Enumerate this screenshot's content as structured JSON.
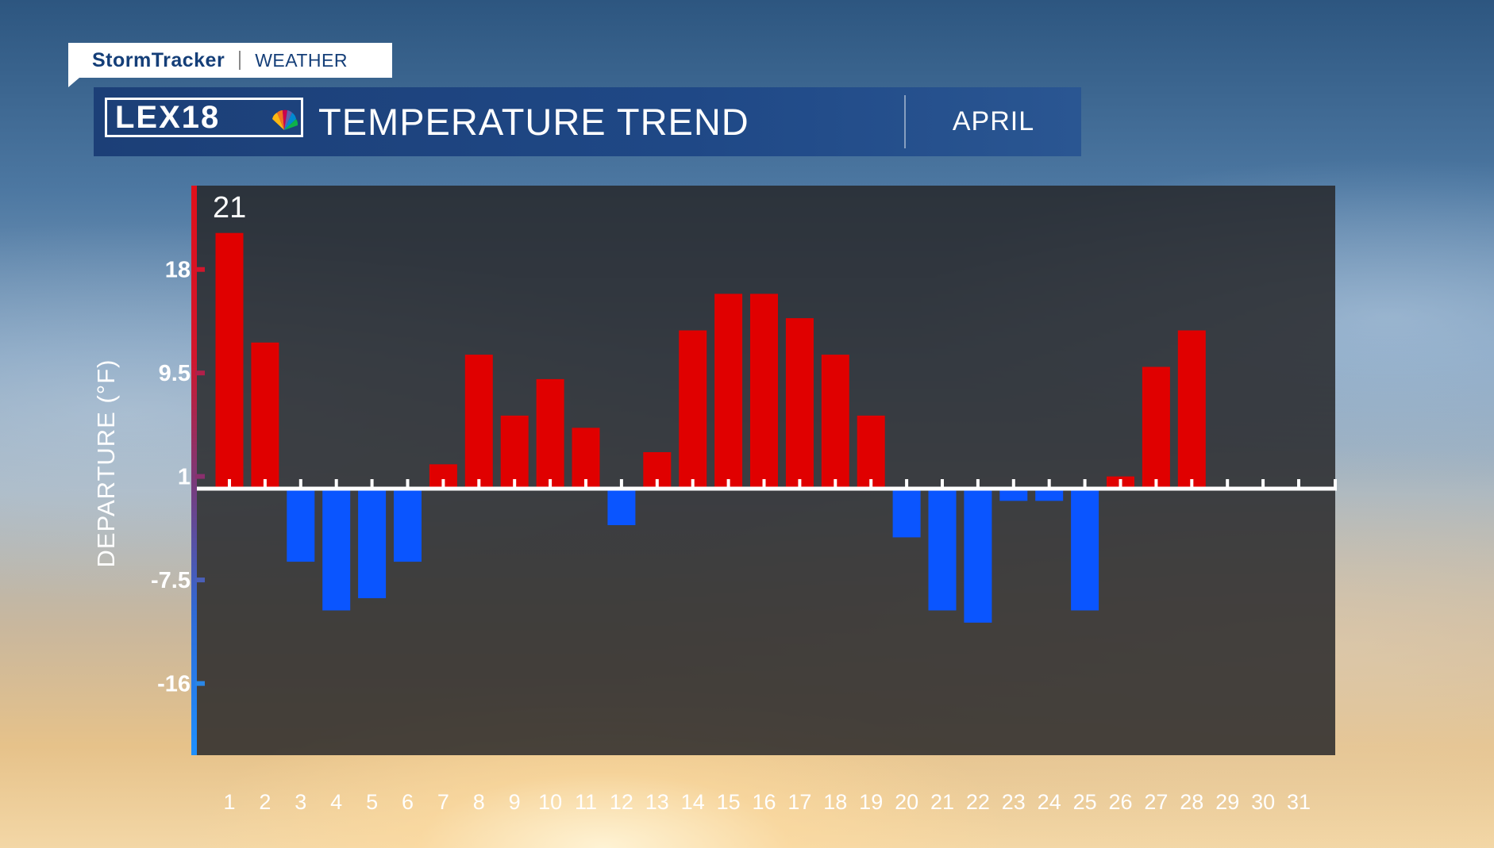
{
  "brand": {
    "storm": "StormTracker",
    "weather": "WEATHER",
    "logo": "LEX18"
  },
  "header": {
    "title": "TEMPERATURE TREND",
    "month": "APRIL"
  },
  "colors": {
    "above": "#e00000",
    "below": "#0a55ff",
    "title_bar": "#1f4886"
  },
  "chart_data": {
    "type": "bar",
    "title": "TEMPERATURE TREND",
    "subtitle": "APRIL",
    "ylabel": "DEPARTURE (°F)",
    "xlabel": "",
    "categories": [
      "1",
      "2",
      "3",
      "4",
      "5",
      "6",
      "7",
      "8",
      "9",
      "10",
      "11",
      "12",
      "13",
      "14",
      "15",
      "16",
      "17",
      "18",
      "19",
      "20",
      "21",
      "22",
      "23",
      "24",
      "25",
      "26",
      "27",
      "28",
      "29",
      "30",
      "31"
    ],
    "values": [
      21,
      12,
      -6,
      -10,
      -9,
      -6,
      2,
      11,
      6,
      9,
      5,
      -3,
      3,
      13,
      16,
      16,
      14,
      11,
      6,
      -4,
      -10,
      -11,
      -1,
      -1,
      -10,
      1,
      10,
      13,
      null,
      null,
      null
    ],
    "yticks": [
      18,
      9.5,
      1,
      -7.5,
      -16
    ],
    "ytick_labels": [
      "18",
      "9.5",
      "1",
      "-7.5",
      "-16"
    ],
    "baseline": 0,
    "ylim": [
      -22,
      25
    ],
    "max_label": "21",
    "grid": false,
    "legend": "none"
  }
}
